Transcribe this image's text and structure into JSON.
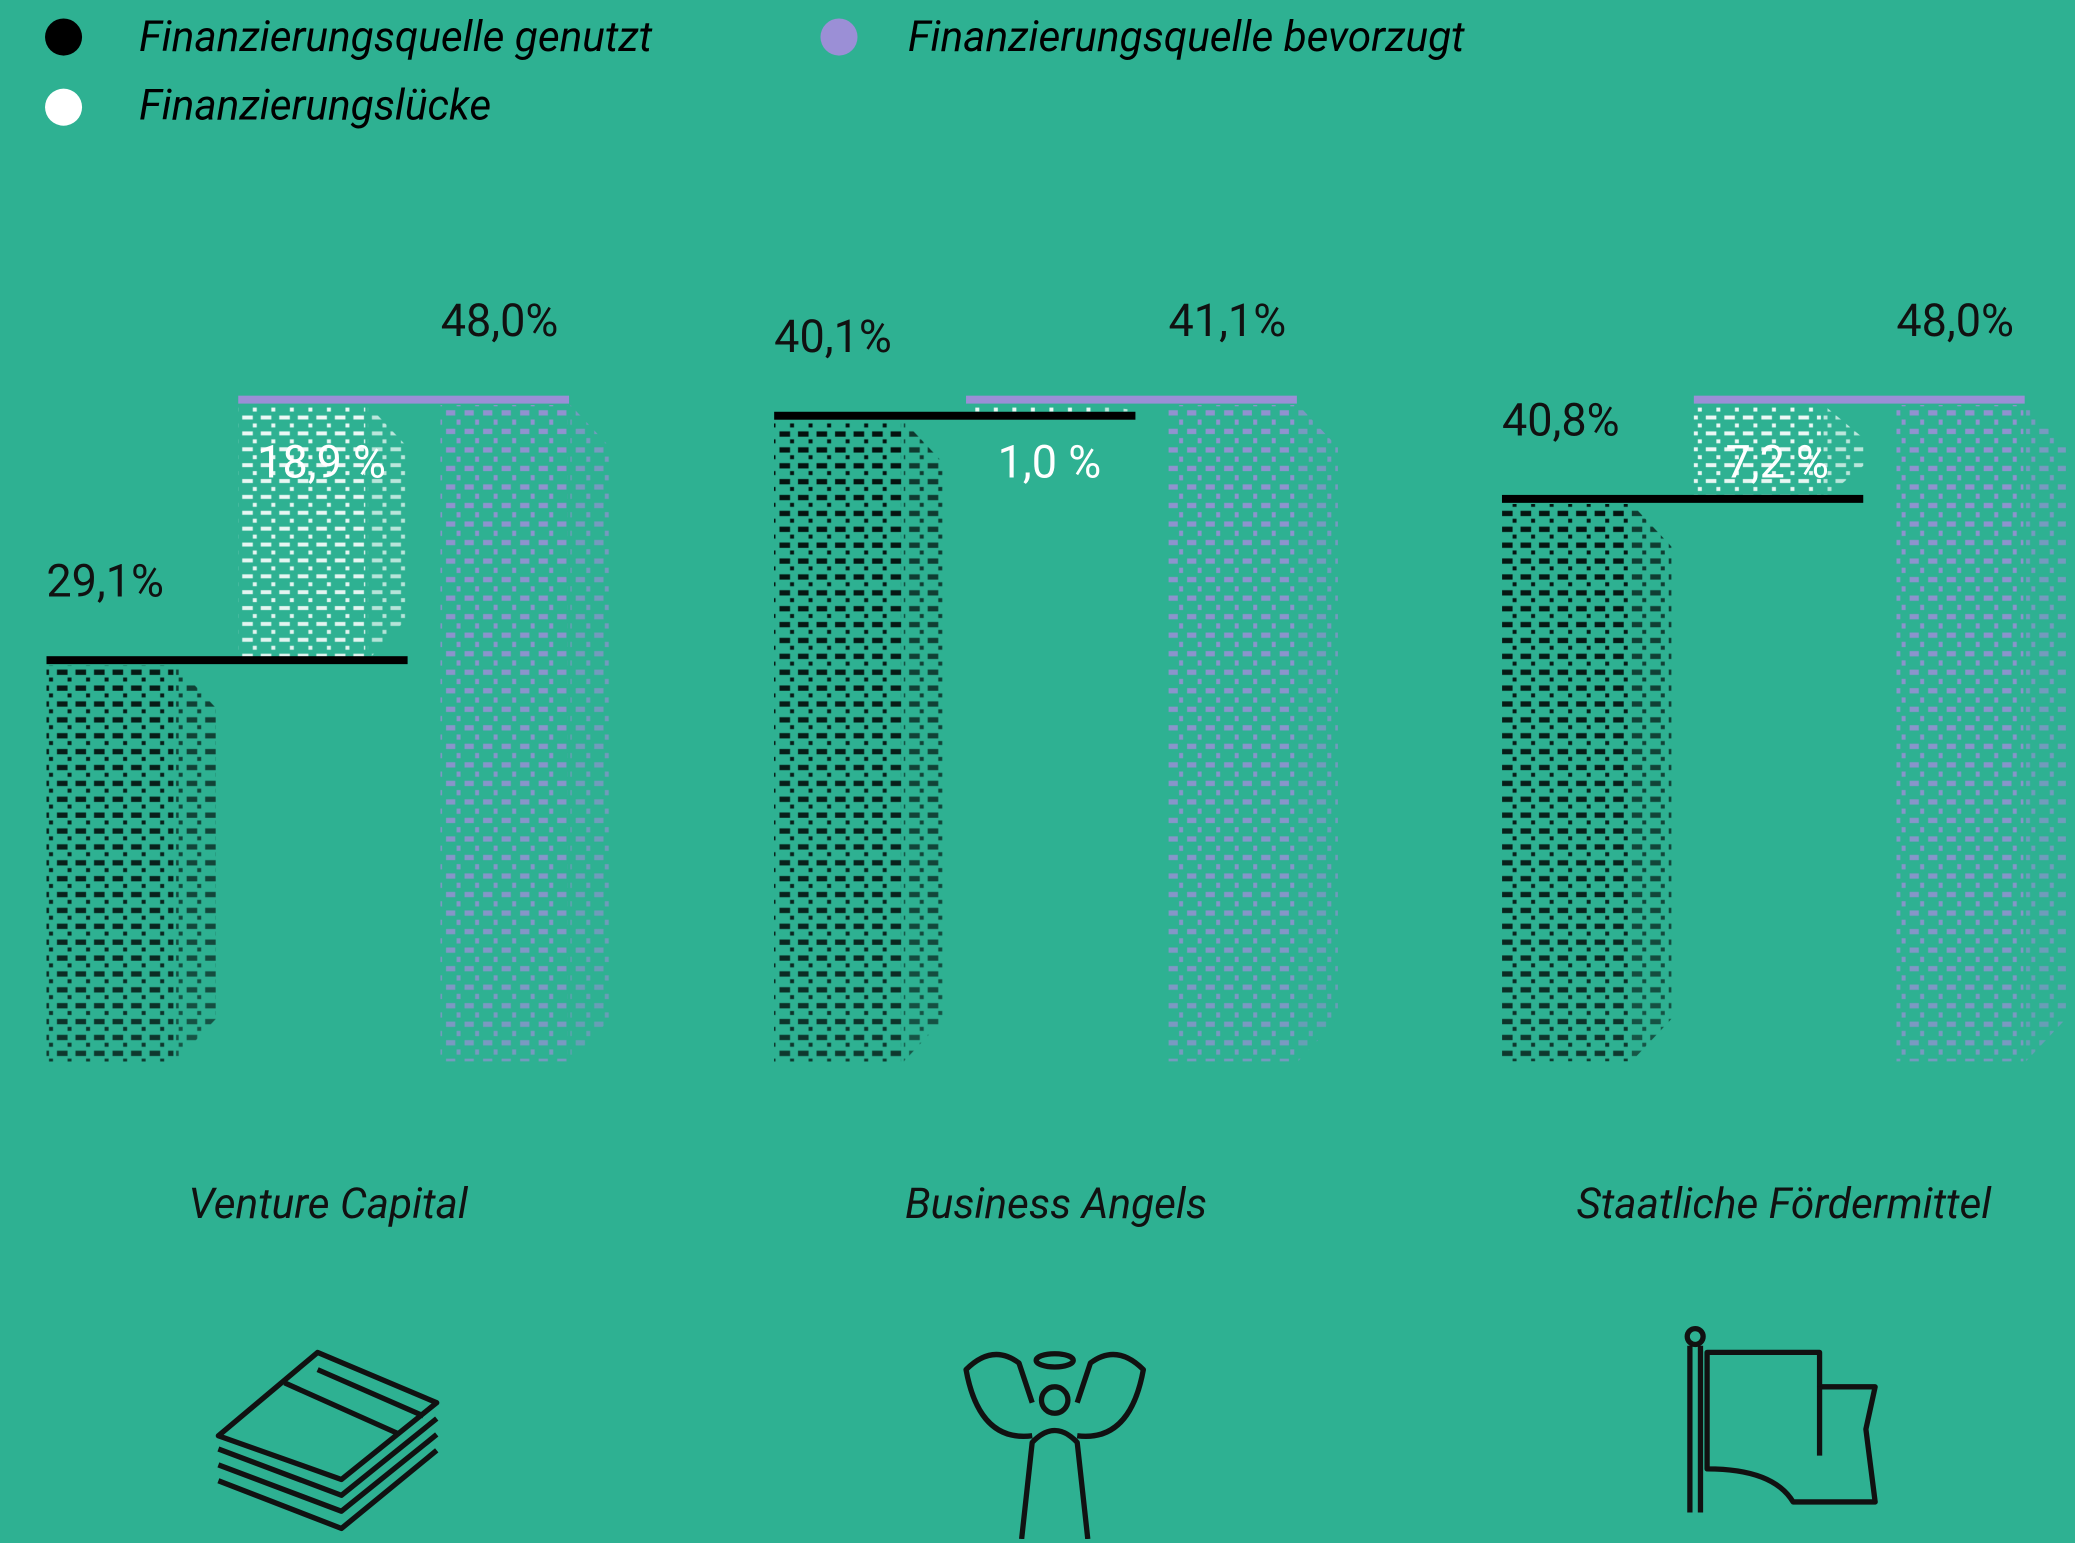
{
  "chart_data": {
    "type": "bar",
    "categories": [
      "Venture Capital",
      "Business Angels",
      "Staatliche Fördermittel"
    ],
    "series": [
      {
        "name": "Finanzierungsquelle genutzt",
        "color": "#000000",
        "values": [
          29.1,
          40.1,
          40.8
        ],
        "value_labels": [
          "29,1%",
          "40,1%",
          "40,8%"
        ]
      },
      {
        "name": "Finanzierungslücke",
        "color": "#ffffff",
        "values": [
          18.9,
          1.0,
          7.2
        ],
        "value_labels": [
          "18,9 %",
          "1,0 %",
          "7,2 %"
        ]
      },
      {
        "name": "Finanzierungsquelle bevorzugt",
        "color": "#9b8fd6",
        "values": [
          48.0,
          41.1,
          48.0
        ],
        "value_labels": [
          "48,0%",
          "41,1%",
          "48,0%"
        ]
      }
    ]
  }
}
